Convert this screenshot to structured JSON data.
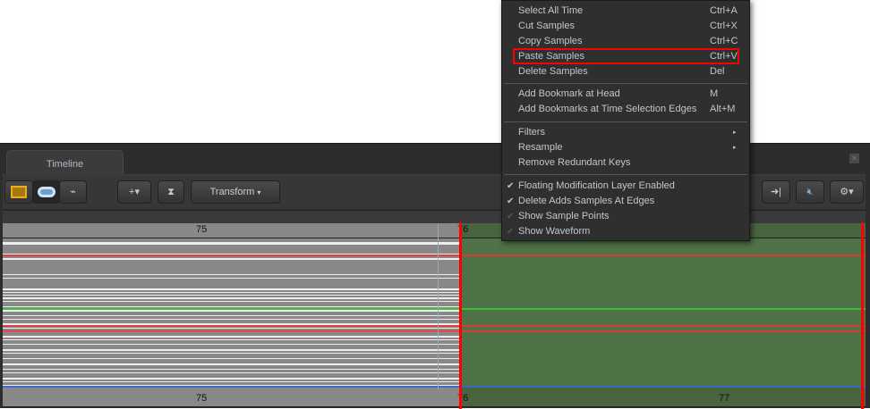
{
  "panel": {
    "tab": "Timeline",
    "close": "×"
  },
  "toolbar": {
    "transform": "Transform",
    "icons": [
      "film-strip-icon",
      "curves-view-icon",
      "waveform-icon",
      "add-bookmark-icon",
      "time-selection-icon",
      "jump-to-end-icon",
      "mute-icon",
      "gear-icon"
    ]
  },
  "ruler": {
    "top": [
      "75",
      "76"
    ],
    "bottom": [
      "75",
      "76",
      "77"
    ]
  },
  "menu": {
    "items": [
      {
        "label": "Select All Time",
        "shortcut": "Ctrl+A"
      },
      {
        "label": "Cut Samples",
        "shortcut": "Ctrl+X"
      },
      {
        "label": "Copy Samples",
        "shortcut": "Ctrl+C"
      },
      {
        "label": "Paste Samples",
        "shortcut": "Ctrl+V",
        "highlighted": true
      },
      {
        "label": "Delete Samples",
        "shortcut": "Del"
      },
      {
        "label": "Add Bookmark at Head",
        "shortcut": "M"
      },
      {
        "label": "Add Bookmarks at Time Selection Edges",
        "shortcut": "Alt+M"
      },
      {
        "label": "Filters",
        "submenu": true
      },
      {
        "label": "Resample",
        "submenu": true
      },
      {
        "label": "Remove Redundant Keys"
      },
      {
        "label": "Floating Modification Layer Enabled",
        "checked": true
      },
      {
        "label": "Delete Adds Samples At Edges",
        "checked": true
      },
      {
        "label": "Show Sample Points",
        "checked": false
      },
      {
        "label": "Show Waveform",
        "checked": false
      }
    ],
    "check": "✔",
    "arrow": "▸"
  },
  "colors": {
    "highlight": "#ff0000",
    "selection": "#4a6440",
    "accent": "#e8b020"
  }
}
